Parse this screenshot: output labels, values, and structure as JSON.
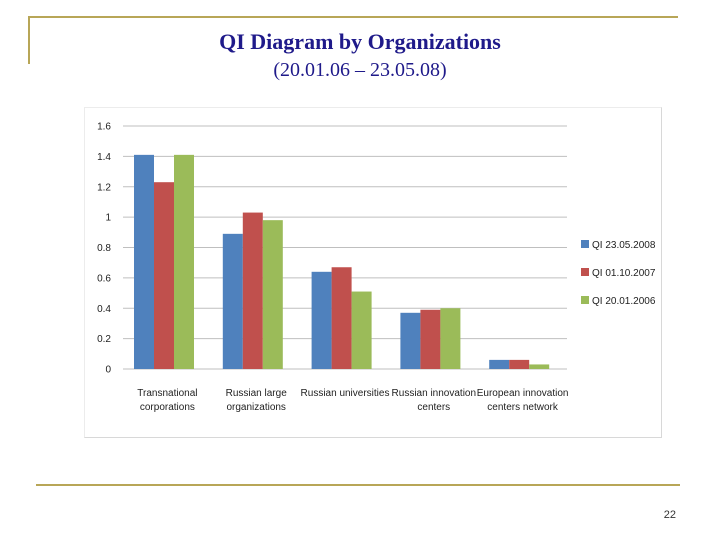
{
  "slide": {
    "title_line1": "QI Diagram by Organizations",
    "title_line2": "(20.01.06 – 23.05.08)",
    "page_number": "22"
  },
  "colors": {
    "rule": "#b8a657",
    "title": "#1f1a8a",
    "grid": "#bfbfbf"
  },
  "chart_data": {
    "type": "bar",
    "title": "",
    "xlabel": "",
    "ylabel": "",
    "ylim": [
      0,
      1.6
    ],
    "yticks": [
      0,
      0.2,
      0.4,
      0.6,
      0.8,
      1,
      1.2,
      1.4,
      1.6
    ],
    "grid": true,
    "legend_position": "right",
    "categories": [
      [
        "Transnational",
        "corporations"
      ],
      [
        "Russian large",
        "organizations"
      ],
      [
        "Russian universities"
      ],
      [
        "Russian innovation",
        "centers"
      ],
      [
        "European innovation",
        "centers network"
      ]
    ],
    "series": [
      {
        "name": "QI 23.05.2008",
        "color": "#4f81bd",
        "values": [
          1.41,
          0.89,
          0.64,
          0.37,
          0.06
        ]
      },
      {
        "name": "QI 01.10.2007",
        "color": "#c0504d",
        "values": [
          1.23,
          1.03,
          0.67,
          0.39,
          0.06
        ]
      },
      {
        "name": "QI 20.01.2006",
        "color": "#9bbb59",
        "values": [
          1.41,
          0.98,
          0.51,
          0.4,
          0.03
        ]
      }
    ]
  }
}
